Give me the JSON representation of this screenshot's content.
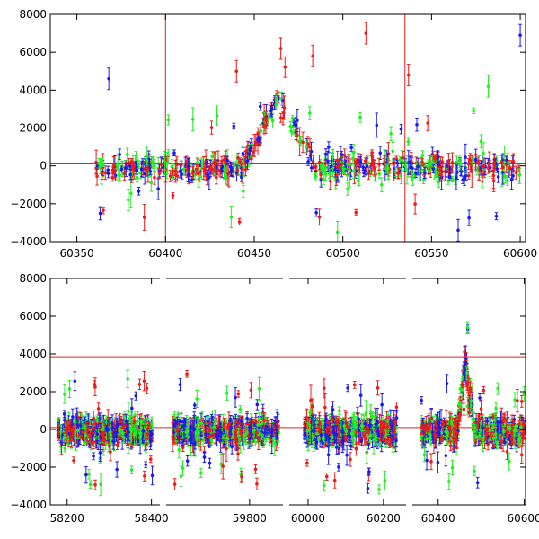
{
  "chart_data": [
    {
      "type": "scatter",
      "title": "",
      "xlabel": "",
      "ylabel": "",
      "xlim": [
        60335,
        60603
      ],
      "ylim": [
        -4000,
        8000
      ],
      "grid": false,
      "x_ticks": [
        60350,
        60400,
        60450,
        60500,
        60550,
        60600
      ],
      "x_tick_labels": [
        "60350",
        "60400",
        "60450",
        "60500",
        "60550",
        "60600"
      ],
      "y_ticks": [
        -4000,
        -2000,
        0,
        2000,
        4000,
        6000,
        8000
      ],
      "y_tick_labels": [
        "−4000",
        "−2000",
        "0",
        "2000",
        "4000",
        "6000",
        "8000"
      ],
      "reference_lines": {
        "horizontal": [
          100,
          3850
        ],
        "vertical": [
          60400,
          60535
        ]
      },
      "colors": {
        "series_green": "#22ee22",
        "series_blue": "#1a1aee",
        "series_red": "#ee1a1a",
        "lines": "#e0201c"
      },
      "flare": {
        "start": 60443,
        "peak": 60463,
        "end": 60485,
        "peak_value": 3700
      },
      "outliers": [
        {
          "x": 60368,
          "y": 4600,
          "color": "blue"
        },
        {
          "x": 60440,
          "y": 5000,
          "color": "red"
        },
        {
          "x": 60465,
          "y": 6200,
          "color": "red"
        },
        {
          "x": 60483,
          "y": 5800,
          "color": "red"
        },
        {
          "x": 60513,
          "y": 7000,
          "color": "red"
        },
        {
          "x": 60537,
          "y": 4800,
          "color": "red"
        },
        {
          "x": 60582,
          "y": 4200,
          "color": "green"
        },
        {
          "x": 60600,
          "y": 6900,
          "color": "blue"
        },
        {
          "x": 60437,
          "y": -2700,
          "color": "green"
        },
        {
          "x": 60497,
          "y": -3500,
          "color": "green"
        },
        {
          "x": 60565,
          "y": -3400,
          "color": "blue"
        },
        {
          "x": 60379,
          "y": -1800,
          "color": "green"
        }
      ]
    },
    {
      "type": "scatter",
      "title": "",
      "xlabel": "",
      "ylabel": "",
      "broken_axis": true,
      "segments": [
        {
          "xlim": [
            58160,
            58420
          ],
          "x_ticks": [
            58200,
            58400
          ],
          "x_tick_labels": [
            "58200",
            "58400"
          ],
          "data_range": [
            58178,
            58402
          ]
        },
        {
          "xlim": [
            59600,
            59880
          ],
          "x_ticks": [
            59800
          ],
          "x_tick_labels": [
            "59800"
          ],
          "data_range": [
            59615,
            59870
          ]
        },
        {
          "xlim": [
            59950,
            60260
          ],
          "x_ticks": [
            60000,
            60200
          ],
          "x_tick_labels": [
            "60000",
            "60200"
          ],
          "data_range": [
            59990,
            60235
          ]
        },
        {
          "xlim": [
            60340,
            60603
          ],
          "x_ticks": [
            60400,
            60600
          ],
          "x_tick_labels": [
            "60400",
            "60600"
          ],
          "data_range": [
            60360,
            60600
          ]
        }
      ],
      "ylim": [
        -4000,
        8000
      ],
      "grid": false,
      "y_ticks": [
        -4000,
        -2000,
        0,
        2000,
        4000,
        6000,
        8000
      ],
      "y_tick_labels": [
        "−4000",
        "−2000",
        "0",
        "2000",
        "4000",
        "6000",
        "8000"
      ],
      "reference_lines": {
        "horizontal": [
          100,
          3850
        ]
      },
      "colors": {
        "series_green": "#22ee22",
        "series_blue": "#1a1aee",
        "series_red": "#ee1a1a",
        "lines": "#e0201c"
      },
      "flare": {
        "start": 60443,
        "peak": 60463,
        "end": 60485,
        "peak_value": 3700
      }
    }
  ]
}
